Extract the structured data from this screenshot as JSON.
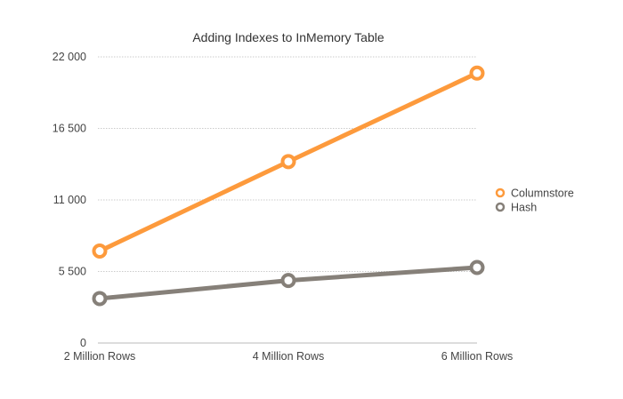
{
  "chart_data": {
    "type": "line",
    "title": "Adding Indexes to InMemory Table",
    "xlabel": "",
    "ylabel": "",
    "categories": [
      "2 Million Rows",
      "4 Million Rows",
      "6 Million Rows"
    ],
    "ylim": [
      0,
      22000
    ],
    "yticks": [
      0,
      5500,
      11000,
      16500,
      22000
    ],
    "ytick_labels": [
      "0",
      "5 500",
      "11 000",
      "16 500",
      "22 000"
    ],
    "grid": true,
    "legend": "right",
    "series": [
      {
        "name": "Columnstore",
        "color": "#fd9a3c",
        "values": [
          7070,
          13950,
          20750
        ]
      },
      {
        "name": "Hash",
        "color": "#868079",
        "values": [
          3420,
          4810,
          5810
        ]
      }
    ]
  }
}
